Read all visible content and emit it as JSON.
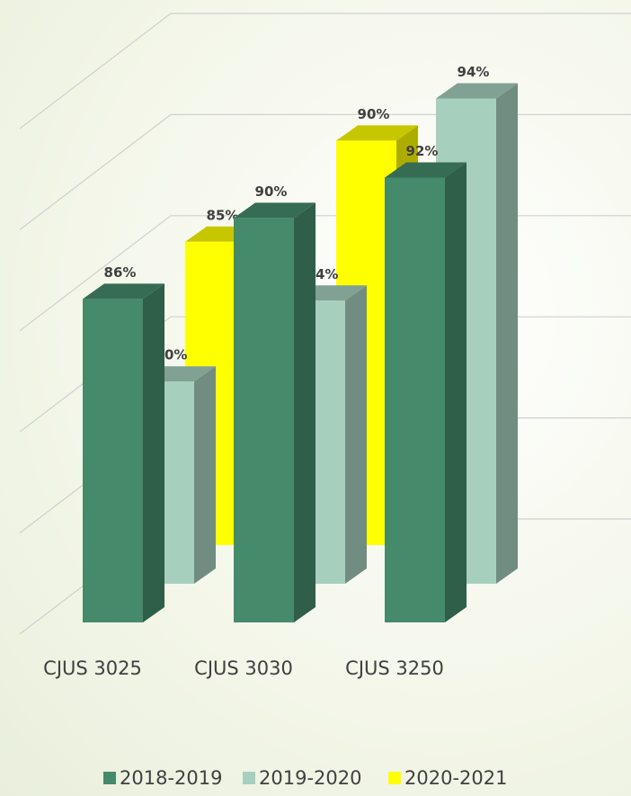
{
  "chart_data": {
    "type": "bar3d",
    "categories": [
      "CJUS 3025",
      "CJUS 3030",
      "CJUS 3250"
    ],
    "series": [
      {
        "name": "2018-2019",
        "color": "#458a6b",
        "values": [
          86,
          90,
          92
        ],
        "value_labels": [
          "86%",
          "90%",
          "92%"
        ]
      },
      {
        "name": "2019-2020",
        "color": "#a6cfbe",
        "values": [
          80,
          84,
          94
        ],
        "value_labels": [
          "80%",
          "84%",
          "94%"
        ]
      },
      {
        "name": "2020-2021",
        "color": "#ffff00",
        "values": [
          85,
          90,
          null
        ],
        "value_labels": [
          "85%",
          "90%",
          null
        ]
      }
    ],
    "ylim": [
      70,
      95
    ],
    "yticks": [
      70,
      75,
      80,
      85,
      90,
      95
    ],
    "grid": true
  }
}
